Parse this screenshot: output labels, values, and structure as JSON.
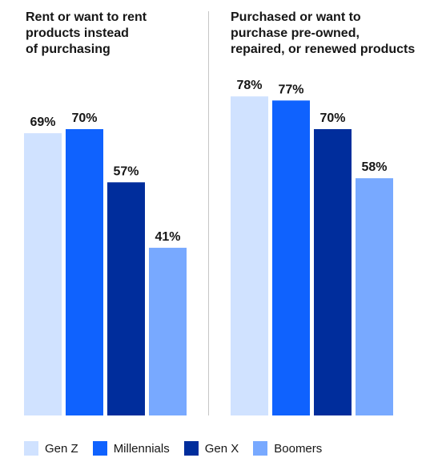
{
  "chart_data": [
    {
      "type": "bar",
      "title": "Rent or want to rent\nproducts instead\nof purchasing",
      "categories": [
        "Gen Z",
        "Millennials",
        "Gen X",
        "Boomers"
      ],
      "values": [
        69,
        70,
        57,
        41
      ],
      "value_labels": [
        "69%",
        "70%",
        "57%",
        "41%"
      ],
      "ylim": [
        0,
        100
      ],
      "grid": false
    },
    {
      "type": "bar",
      "title": "Purchased or want to\npurchase pre-owned,\nrepaired, or renewed products",
      "categories": [
        "Gen Z",
        "Millennials",
        "Gen X",
        "Boomers"
      ],
      "values": [
        78,
        77,
        70,
        58
      ],
      "value_labels": [
        "78%",
        "77%",
        "70%",
        "58%"
      ],
      "ylim": [
        0,
        100
      ],
      "grid": false
    }
  ],
  "legend": {
    "placement": "bottom-left",
    "items": [
      {
        "label": "Gen Z",
        "color": "#d0e2ff"
      },
      {
        "label": "Millennials",
        "color": "#0f62fe"
      },
      {
        "label": "Gen X",
        "color": "#002d9c"
      },
      {
        "label": "Boomers",
        "color": "#78a9ff"
      }
    ]
  }
}
